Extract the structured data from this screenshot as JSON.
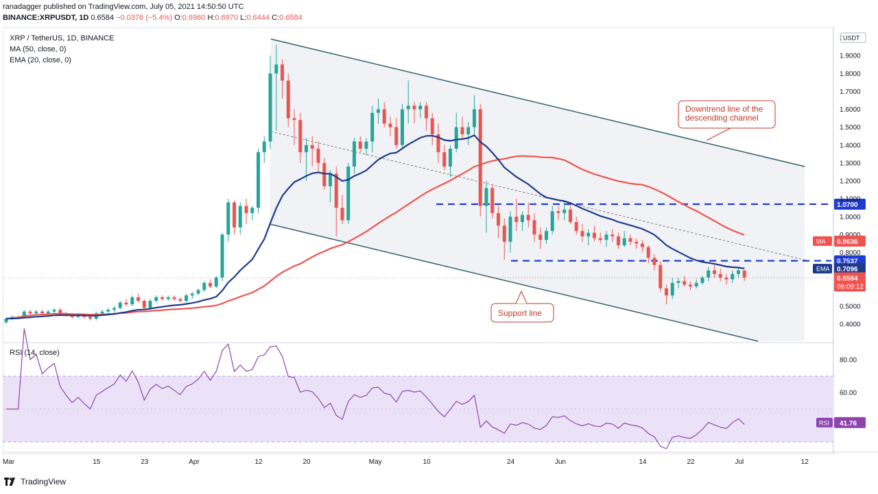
{
  "header": {
    "published": "ranadagger published on TradingView.com, July 05, 2021 14:50:50 UTC",
    "symbol": "BINANCE:XRPUSDT, 1D",
    "o_label": "O:",
    "o": "0.6960",
    "h_label": "H:",
    "h": "0.6970",
    "l_label": "L:",
    "l": "0.6444",
    "c_label": "C:",
    "c": "0.6584",
    "last": "0.6584",
    "change": "−0.0376 (−5.4%)"
  },
  "legend": {
    "title": "XRP / TetherUS, 1D, BINANCE",
    "ma": "MA (50, close, 0)",
    "ema": "EMA (20, close, 0)",
    "rsi": "RSI (14, close)"
  },
  "footer": {
    "brand": "TradingView"
  },
  "colors": {
    "up": "#26a69a",
    "down": "#ef5350",
    "ema": "#1e3a8a",
    "ma": "#ef5350",
    "channel": "#2f5e6e",
    "channel_fill": "#eef0f3",
    "dashed": "#1f3bd1",
    "rsi": "#8e44ad",
    "rsi_band": "#ece2f7",
    "annotation": "#c0392b"
  },
  "chart_data": {
    "type": "candlestick",
    "symbol": "XRP / TetherUS",
    "timeframe": "1D",
    "exchange": "BINANCE",
    "price_axis": {
      "ylim": [
        0.34,
        2.02
      ],
      "ticks": [
        "2",
        "1.9000",
        "1.8000",
        "1.7000",
        "1.6000",
        "1.5000",
        "1.4000",
        "1.3000",
        "1.2000",
        "1.1000",
        "1.0000",
        "0.9000",
        "0.8000",
        "0.7000",
        "0.6000",
        "0.5000",
        "0.4000"
      ],
      "tick_values": [
        2.0,
        1.9,
        1.8,
        1.7,
        1.6,
        1.5,
        1.4,
        1.3,
        1.2,
        1.1,
        1.0,
        0.9,
        0.8,
        0.7,
        0.6,
        0.5,
        0.4
      ],
      "unit": "USDT"
    },
    "time_axis": {
      "labels": [
        "Mar",
        "15",
        "23",
        "Apr",
        "12",
        "20",
        "May",
        "10",
        "24",
        "Jun",
        "14",
        "22",
        "Jul",
        "12"
      ],
      "label_days": [
        0,
        15,
        23,
        31,
        42,
        50,
        61,
        70,
        84,
        92,
        106,
        114,
        122,
        133
      ],
      "start": "2021-03-08",
      "end": "2021-07-12"
    },
    "candles": [
      [
        0.41,
        0.44,
        0.4,
        0.43
      ],
      [
        0.43,
        0.45,
        0.42,
        0.44
      ],
      [
        0.44,
        0.45,
        0.43,
        0.44
      ],
      [
        0.44,
        0.48,
        0.43,
        0.47
      ],
      [
        0.47,
        0.48,
        0.45,
        0.46
      ],
      [
        0.46,
        0.48,
        0.45,
        0.47
      ],
      [
        0.47,
        0.48,
        0.45,
        0.46
      ],
      [
        0.46,
        0.48,
        0.45,
        0.47
      ],
      [
        0.47,
        0.49,
        0.46,
        0.48
      ],
      [
        0.48,
        0.49,
        0.45,
        0.46
      ],
      [
        0.46,
        0.47,
        0.44,
        0.45
      ],
      [
        0.45,
        0.46,
        0.43,
        0.44
      ],
      [
        0.44,
        0.46,
        0.43,
        0.45
      ],
      [
        0.45,
        0.46,
        0.43,
        0.44
      ],
      [
        0.44,
        0.45,
        0.42,
        0.43
      ],
      [
        0.43,
        0.47,
        0.42,
        0.46
      ],
      [
        0.46,
        0.48,
        0.45,
        0.47
      ],
      [
        0.47,
        0.49,
        0.46,
        0.48
      ],
      [
        0.48,
        0.5,
        0.46,
        0.49
      ],
      [
        0.49,
        0.53,
        0.48,
        0.52
      ],
      [
        0.52,
        0.54,
        0.5,
        0.51
      ],
      [
        0.51,
        0.56,
        0.5,
        0.55
      ],
      [
        0.55,
        0.57,
        0.52,
        0.53
      ],
      [
        0.53,
        0.54,
        0.48,
        0.49
      ],
      [
        0.49,
        0.54,
        0.48,
        0.53
      ],
      [
        0.53,
        0.56,
        0.52,
        0.55
      ],
      [
        0.55,
        0.56,
        0.53,
        0.54
      ],
      [
        0.54,
        0.56,
        0.53,
        0.55
      ],
      [
        0.55,
        0.56,
        0.53,
        0.54
      ],
      [
        0.54,
        0.55,
        0.52,
        0.53
      ],
      [
        0.53,
        0.57,
        0.52,
        0.56
      ],
      [
        0.56,
        0.58,
        0.54,
        0.57
      ],
      [
        0.57,
        0.6,
        0.56,
        0.59
      ],
      [
        0.59,
        0.64,
        0.58,
        0.63
      ],
      [
        0.63,
        0.65,
        0.6,
        0.61
      ],
      [
        0.61,
        0.67,
        0.6,
        0.66
      ],
      [
        0.66,
        0.91,
        0.64,
        0.9
      ],
      [
        0.9,
        1.1,
        0.86,
        1.08
      ],
      [
        1.08,
        1.09,
        0.9,
        0.94
      ],
      [
        0.94,
        1.08,
        0.9,
        1.06
      ],
      [
        1.06,
        1.1,
        0.96,
        1.02
      ],
      [
        1.02,
        1.06,
        0.98,
        1.05
      ],
      [
        1.05,
        1.38,
        1.02,
        1.36
      ],
      [
        1.36,
        1.45,
        1.3,
        1.42
      ],
      [
        1.42,
        1.9,
        1.38,
        1.8
      ],
      [
        1.8,
        1.96,
        1.48,
        1.85
      ],
      [
        1.85,
        1.88,
        1.66,
        1.76
      ],
      [
        1.76,
        1.8,
        1.5,
        1.55
      ],
      [
        1.55,
        1.6,
        1.4,
        1.54
      ],
      [
        1.54,
        1.58,
        1.3,
        1.36
      ],
      [
        1.36,
        1.44,
        1.2,
        1.4
      ],
      [
        1.4,
        1.45,
        1.28,
        1.38
      ],
      [
        1.38,
        1.42,
        1.24,
        1.3
      ],
      [
        1.3,
        1.33,
        1.15,
        1.17
      ],
      [
        1.17,
        1.26,
        1.08,
        1.24
      ],
      [
        1.24,
        1.28,
        0.89,
        1.05
      ],
      [
        1.05,
        1.12,
        0.96,
        0.98
      ],
      [
        0.98,
        1.3,
        0.96,
        1.28
      ],
      [
        1.28,
        1.44,
        1.24,
        1.42
      ],
      [
        1.42,
        1.45,
        1.36,
        1.38
      ],
      [
        1.38,
        1.44,
        1.34,
        1.42
      ],
      [
        1.42,
        1.62,
        1.36,
        1.58
      ],
      [
        1.58,
        1.66,
        1.52,
        1.6
      ],
      [
        1.6,
        1.64,
        1.5,
        1.52
      ],
      [
        1.52,
        1.56,
        1.45,
        1.5
      ],
      [
        1.5,
        1.55,
        1.38,
        1.4
      ],
      [
        1.4,
        1.63,
        1.38,
        1.6
      ],
      [
        1.6,
        1.76,
        1.52,
        1.62
      ],
      [
        1.62,
        1.64,
        1.52,
        1.6
      ],
      [
        1.6,
        1.64,
        1.55,
        1.62
      ],
      [
        1.62,
        1.64,
        1.48,
        1.55
      ],
      [
        1.55,
        1.58,
        1.4,
        1.46
      ],
      [
        1.46,
        1.52,
        1.3,
        1.36
      ],
      [
        1.36,
        1.4,
        1.26,
        1.28
      ],
      [
        1.28,
        1.4,
        1.22,
        1.38
      ],
      [
        1.38,
        1.58,
        1.36,
        1.5
      ],
      [
        1.5,
        1.56,
        1.43,
        1.46
      ],
      [
        1.46,
        1.53,
        1.4,
        1.5
      ],
      [
        1.5,
        1.68,
        1.46,
        1.6
      ],
      [
        1.6,
        1.63,
        1.0,
        1.06
      ],
      [
        1.06,
        1.2,
        0.91,
        1.16
      ],
      [
        1.16,
        1.18,
        0.99,
        1.02
      ],
      [
        1.02,
        1.06,
        0.88,
        0.95
      ],
      [
        0.95,
        0.99,
        0.76,
        0.86
      ],
      [
        0.86,
        1.03,
        0.8,
        1.0
      ],
      [
        1.0,
        1.1,
        0.92,
        0.97
      ],
      [
        0.97,
        1.03,
        0.92,
        1.01
      ],
      [
        1.01,
        1.08,
        0.94,
        0.98
      ],
      [
        0.98,
        1.02,
        0.86,
        0.9
      ],
      [
        0.9,
        0.94,
        0.82,
        0.87
      ],
      [
        0.87,
        0.94,
        0.85,
        0.92
      ],
      [
        0.92,
        1.06,
        0.9,
        1.03
      ],
      [
        1.03,
        1.06,
        0.98,
        1.02
      ],
      [
        1.02,
        1.08,
        0.98,
        1.04
      ],
      [
        1.04,
        1.06,
        0.96,
        0.97
      ],
      [
        0.97,
        1.0,
        0.9,
        0.92
      ],
      [
        0.92,
        0.96,
        0.86,
        0.89
      ],
      [
        0.89,
        0.93,
        0.84,
        0.91
      ],
      [
        0.91,
        0.95,
        0.86,
        0.88
      ],
      [
        0.88,
        0.91,
        0.85,
        0.87
      ],
      [
        0.87,
        0.92,
        0.83,
        0.9
      ],
      [
        0.9,
        0.93,
        0.86,
        0.89
      ],
      [
        0.89,
        0.91,
        0.82,
        0.84
      ],
      [
        0.84,
        0.92,
        0.83,
        0.88
      ],
      [
        0.88,
        0.9,
        0.84,
        0.86
      ],
      [
        0.86,
        0.88,
        0.82,
        0.85
      ],
      [
        0.85,
        0.87,
        0.8,
        0.83
      ],
      [
        0.83,
        0.84,
        0.74,
        0.77
      ],
      [
        0.77,
        0.79,
        0.7,
        0.73
      ],
      [
        0.73,
        0.75,
        0.58,
        0.6
      ],
      [
        0.6,
        0.62,
        0.51,
        0.56
      ],
      [
        0.56,
        0.66,
        0.54,
        0.63
      ],
      [
        0.63,
        0.66,
        0.6,
        0.64
      ],
      [
        0.64,
        0.67,
        0.61,
        0.62
      ],
      [
        0.62,
        0.64,
        0.59,
        0.61
      ],
      [
        0.61,
        0.65,
        0.6,
        0.63
      ],
      [
        0.63,
        0.67,
        0.62,
        0.66
      ],
      [
        0.66,
        0.72,
        0.64,
        0.7
      ],
      [
        0.7,
        0.73,
        0.66,
        0.68
      ],
      [
        0.68,
        0.71,
        0.64,
        0.66
      ],
      [
        0.66,
        0.68,
        0.62,
        0.65
      ],
      [
        0.65,
        0.7,
        0.63,
        0.68
      ],
      [
        0.68,
        0.72,
        0.66,
        0.7
      ],
      [
        0.7,
        0.7,
        0.64,
        0.66
      ]
    ],
    "ema20_value": 0.7096,
    "ma50_value": 0.8636,
    "last_close": 0.6584,
    "timer": "09:09:12",
    "levels": [
      {
        "price": 1.07,
        "label": "1.0700"
      },
      {
        "price": 0.7537,
        "label": "0.7537"
      }
    ],
    "value_labels": [
      {
        "name": "MA",
        "value": "0.8636"
      },
      {
        "name": "EMA",
        "value": "0.7096"
      }
    ],
    "annotations": [
      {
        "text": "Downtrend line of the\ndescending channel"
      },
      {
        "text": "Support line"
      }
    ],
    "rsi": {
      "ylim": [
        20,
        92
      ],
      "ticks": [
        "80.00",
        "60.00"
      ],
      "tick_values": [
        80,
        60
      ],
      "band": [
        30,
        70
      ],
      "last": "41.76",
      "label": "RSI"
    }
  }
}
